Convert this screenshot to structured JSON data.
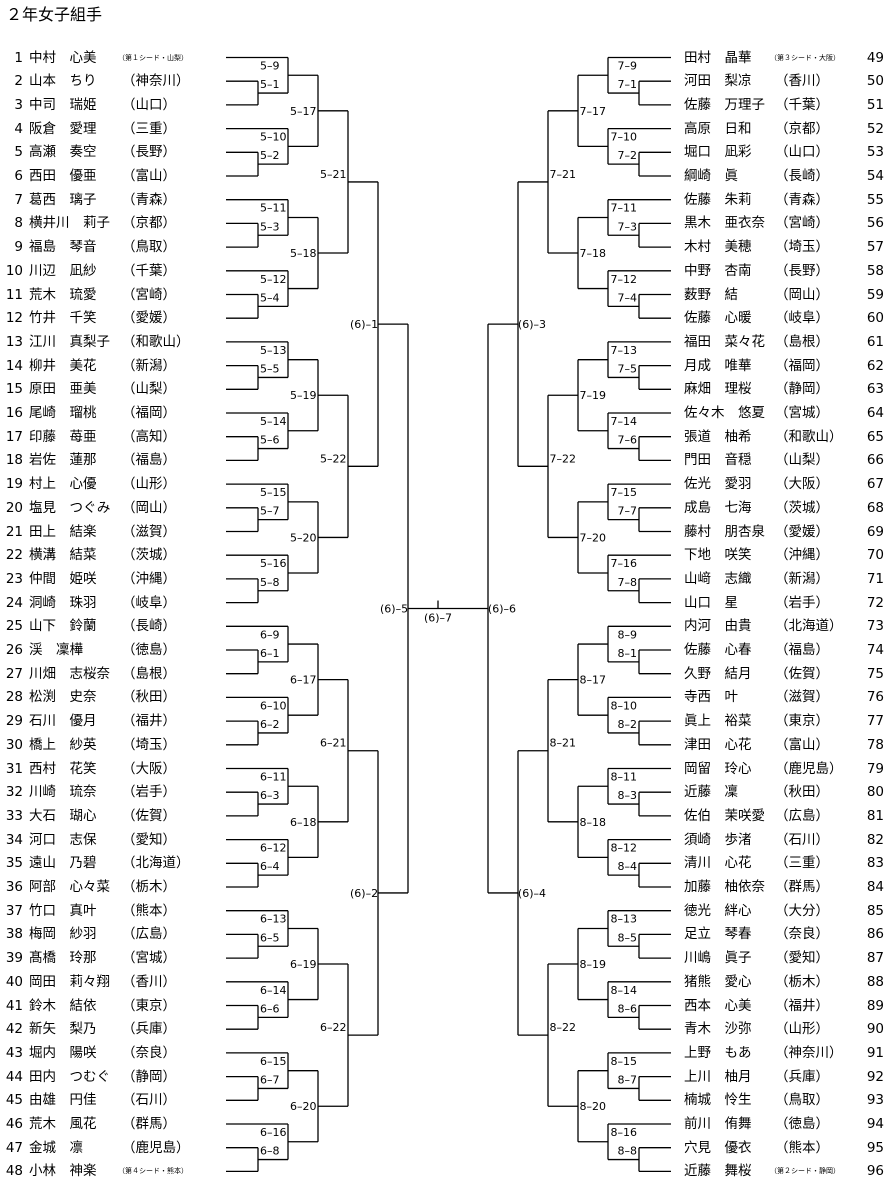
{
  "title": "２年女子組手",
  "left_entries": [
    {
      "num": "1",
      "name": "中村　心美",
      "pref": "",
      "note": "（第１シード・山梨）"
    },
    {
      "num": "2",
      "name": "山本　ちり",
      "pref": "（神奈川）"
    },
    {
      "num": "3",
      "name": "中司　瑞姫",
      "pref": "（山口）"
    },
    {
      "num": "4",
      "name": "阪倉　愛理",
      "pref": "（三重）"
    },
    {
      "num": "5",
      "name": "高瀬　奏空",
      "pref": "（長野）"
    },
    {
      "num": "6",
      "name": "西田　優亜",
      "pref": "（富山）"
    },
    {
      "num": "7",
      "name": "葛西　璃子",
      "pref": "（青森）"
    },
    {
      "num": "8",
      "name": "横井川　莉子",
      "pref": "（京都）"
    },
    {
      "num": "9",
      "name": "福島　琴音",
      "pref": "（鳥取）"
    },
    {
      "num": "10",
      "name": "川辺　凪紗",
      "pref": "（千葉）"
    },
    {
      "num": "11",
      "name": "荒木　琉愛",
      "pref": "（宮崎）"
    },
    {
      "num": "12",
      "name": "竹井　千笑",
      "pref": "（愛媛）"
    },
    {
      "num": "13",
      "name": "江川　真梨子",
      "pref": "（和歌山）"
    },
    {
      "num": "14",
      "name": "柳井　美花",
      "pref": "（新潟）"
    },
    {
      "num": "15",
      "name": "原田　亜美",
      "pref": "（山梨）"
    },
    {
      "num": "16",
      "name": "尾崎　瑠桃",
      "pref": "（福岡）"
    },
    {
      "num": "17",
      "name": "印藤　苺亜",
      "pref": "（高知）"
    },
    {
      "num": "18",
      "name": "岩佐　蓮那",
      "pref": "（福島）"
    },
    {
      "num": "19",
      "name": "村上　心優",
      "pref": "（山形）"
    },
    {
      "num": "20",
      "name": "塩見　つぐみ",
      "pref": "（岡山）"
    },
    {
      "num": "21",
      "name": "田上　結楽",
      "pref": "（滋賀）"
    },
    {
      "num": "22",
      "name": "横溝　結菜",
      "pref": "（茨城）"
    },
    {
      "num": "23",
      "name": "仲間　姫咲",
      "pref": "（沖縄）"
    },
    {
      "num": "24",
      "name": "洞崎　珠羽",
      "pref": "（岐阜）"
    },
    {
      "num": "25",
      "name": "山下　鈴蘭",
      "pref": "（長崎）"
    },
    {
      "num": "26",
      "name": "渓　凜樺",
      "pref": "（徳島）"
    },
    {
      "num": "27",
      "name": "川畑　志桜奈",
      "pref": "（島根）"
    },
    {
      "num": "28",
      "name": "松渕　史奈",
      "pref": "（秋田）"
    },
    {
      "num": "29",
      "name": "石川　優月",
      "pref": "（福井）"
    },
    {
      "num": "30",
      "name": "橋上　紗英",
      "pref": "（埼玉）"
    },
    {
      "num": "31",
      "name": "西村　花笑",
      "pref": "（大阪）"
    },
    {
      "num": "32",
      "name": "川崎　琉奈",
      "pref": "（岩手）"
    },
    {
      "num": "33",
      "name": "大石　瑚心",
      "pref": "（佐賀）"
    },
    {
      "num": "34",
      "name": "河口　志保",
      "pref": "（愛知）"
    },
    {
      "num": "35",
      "name": "遠山　乃碧",
      "pref": "（北海道）"
    },
    {
      "num": "36",
      "name": "阿部　心々菜",
      "pref": "（栃木）"
    },
    {
      "num": "37",
      "name": "竹口　真叶",
      "pref": "（熊本）"
    },
    {
      "num": "38",
      "name": "梅岡　紗羽",
      "pref": "（広島）"
    },
    {
      "num": "39",
      "name": "髙橋　玲那",
      "pref": "（宮城）"
    },
    {
      "num": "40",
      "name": "岡田　莉々翔",
      "pref": "（香川）"
    },
    {
      "num": "41",
      "name": "鈴木　結依",
      "pref": "（東京）"
    },
    {
      "num": "42",
      "name": "新矢　梨乃",
      "pref": "（兵庫）"
    },
    {
      "num": "43",
      "name": "堀内　陽咲",
      "pref": "（奈良）"
    },
    {
      "num": "44",
      "name": "田内　つむぐ",
      "pref": "（静岡）"
    },
    {
      "num": "45",
      "name": "由雄　円佳",
      "pref": "（石川）"
    },
    {
      "num": "46",
      "name": "荒木　風花",
      "pref": "（群馬）"
    },
    {
      "num": "47",
      "name": "金城　凛",
      "pref": "（鹿児島）"
    },
    {
      "num": "48",
      "name": "小林　神楽",
      "pref": "",
      "note": "（第４シード・熊本）"
    }
  ],
  "right_entries": [
    {
      "num": "49",
      "name": "田村　晶華",
      "pref": "",
      "note": "（第３シード・大阪）"
    },
    {
      "num": "50",
      "name": "河田　梨凉",
      "pref": "（香川）"
    },
    {
      "num": "51",
      "name": "佐藤　万理子",
      "pref": "（千葉）"
    },
    {
      "num": "52",
      "name": "高原　日和",
      "pref": "（京都）"
    },
    {
      "num": "53",
      "name": "堀口　凪彩",
      "pref": "（山口）"
    },
    {
      "num": "54",
      "name": "綱崎　眞",
      "pref": "（長崎）"
    },
    {
      "num": "55",
      "name": "佐藤　朱莉",
      "pref": "（青森）"
    },
    {
      "num": "56",
      "name": "黒木　亜衣奈",
      "pref": "（宮崎）"
    },
    {
      "num": "57",
      "name": "木村　美穂",
      "pref": "（埼玉）"
    },
    {
      "num": "58",
      "name": "中野　杏南",
      "pref": "（長野）"
    },
    {
      "num": "59",
      "name": "薮野　結",
      "pref": "（岡山）"
    },
    {
      "num": "60",
      "name": "佐藤　心暖",
      "pref": "（岐阜）"
    },
    {
      "num": "61",
      "name": "福田　菜々花",
      "pref": "（島根）"
    },
    {
      "num": "62",
      "name": "月成　唯華",
      "pref": "（福岡）"
    },
    {
      "num": "63",
      "name": "麻畑　理桜",
      "pref": "（静岡）"
    },
    {
      "num": "64",
      "name": "佐々木　悠夏",
      "pref": "（宮城）"
    },
    {
      "num": "65",
      "name": "張道　柚希",
      "pref": "（和歌山）"
    },
    {
      "num": "66",
      "name": "門田　音穏",
      "pref": "（山梨）"
    },
    {
      "num": "67",
      "name": "佐光　愛羽",
      "pref": "（大阪）"
    },
    {
      "num": "68",
      "name": "成島　七海",
      "pref": "（茨城）"
    },
    {
      "num": "69",
      "name": "藤村　朋杏泉",
      "pref": "（愛媛）"
    },
    {
      "num": "70",
      "name": "下地　咲笑",
      "pref": "（沖縄）"
    },
    {
      "num": "71",
      "name": "山﨑　志織",
      "pref": "（新潟）"
    },
    {
      "num": "72",
      "name": "山口　星",
      "pref": "（岩手）"
    },
    {
      "num": "73",
      "name": "内河　由貴",
      "pref": "（北海道）"
    },
    {
      "num": "74",
      "name": "佐藤　心春",
      "pref": "（福島）"
    },
    {
      "num": "75",
      "name": "久野　結月",
      "pref": "（佐賀）"
    },
    {
      "num": "76",
      "name": "寺西　叶",
      "pref": "（滋賀）"
    },
    {
      "num": "77",
      "name": "眞上　裕菜",
      "pref": "（東京）"
    },
    {
      "num": "78",
      "name": "津田　心花",
      "pref": "（富山）"
    },
    {
      "num": "79",
      "name": "岡留　玲心",
      "pref": "（鹿児島）"
    },
    {
      "num": "80",
      "name": "近藤　凜",
      "pref": "（秋田）"
    },
    {
      "num": "81",
      "name": "佐伯　茉咲愛",
      "pref": "（広島）"
    },
    {
      "num": "82",
      "name": "須崎　歩渚",
      "pref": "（石川）"
    },
    {
      "num": "83",
      "name": "清川　心花",
      "pref": "（三重）"
    },
    {
      "num": "84",
      "name": "加藤　柚依奈",
      "pref": "（群馬）"
    },
    {
      "num": "85",
      "name": "徳光　絆心",
      "pref": "（大分）"
    },
    {
      "num": "86",
      "name": "足立　琴春",
      "pref": "（奈良）"
    },
    {
      "num": "87",
      "name": "川嶋　眞子",
      "pref": "（愛知）"
    },
    {
      "num": "88",
      "name": "猪熊　愛心",
      "pref": "（栃木）"
    },
    {
      "num": "89",
      "name": "西本　心美",
      "pref": "（福井）"
    },
    {
      "num": "90",
      "name": "青木　沙弥",
      "pref": "（山形）"
    },
    {
      "num": "91",
      "name": "上野　もあ",
      "pref": "（神奈川）"
    },
    {
      "num": "92",
      "name": "上川　柚月",
      "pref": "（兵庫）"
    },
    {
      "num": "93",
      "name": "楠城　怜生",
      "pref": "（鳥取）"
    },
    {
      "num": "94",
      "name": "前川　侑舞",
      "pref": "（徳島）"
    },
    {
      "num": "95",
      "name": "穴見　優衣",
      "pref": "（熊本）"
    },
    {
      "num": "96",
      "name": "近藤　舞桜",
      "pref": "",
      "note": "（第２シード・静岡）"
    }
  ],
  "bracket": {
    "left_groups": [
      {
        "r1": [
          "5-1",
          "5-2",
          "5-3",
          "5-4"
        ],
        "r2": [
          "5-9",
          "5-10",
          "5-11",
          "5-12"
        ],
        "r3": [
          "5-17",
          "5-18"
        ],
        "r4": "5-21"
      },
      {
        "r1": [
          "5-5",
          "5-6",
          "5-7",
          "5-8"
        ],
        "r2": [
          "5-13",
          "5-14",
          "5-15",
          "5-16"
        ],
        "r3": [
          "5-19",
          "5-20"
        ],
        "r4": "5-22"
      },
      {
        "r1": [
          "6-1",
          "6-2",
          "6-3",
          "6-4"
        ],
        "r2": [
          "6-9",
          "6-10",
          "6-11",
          "6-12"
        ],
        "r3": [
          "6-17",
          "6-18"
        ],
        "r4": "6-21"
      },
      {
        "r1": [
          "6-5",
          "6-6",
          "6-7",
          "6-8"
        ],
        "r2": [
          "6-13",
          "6-14",
          "6-15",
          "6-16"
        ],
        "r3": [
          "6-19",
          "6-20"
        ],
        "r4": "6-22"
      }
    ],
    "right_groups": [
      {
        "r1": [
          "7-1",
          "7-2",
          "7-3",
          "7-4"
        ],
        "r2": [
          "7-9",
          "7-10",
          "7-11",
          "7-12"
        ],
        "r3": [
          "7-17",
          "7-18"
        ],
        "r4": "7-21"
      },
      {
        "r1": [
          "7-5",
          "7-6",
          "7-7",
          "7-8"
        ],
        "r2": [
          "7-13",
          "7-14",
          "7-15",
          "7-16"
        ],
        "r3": [
          "7-19",
          "7-20"
        ],
        "r4": "7-22"
      },
      {
        "r1": [
          "8-1",
          "8-2",
          "8-3",
          "8-4"
        ],
        "r2": [
          "8-9",
          "8-10",
          "8-11",
          "8-12"
        ],
        "r3": [
          "8-17",
          "8-18"
        ],
        "r4": "8-21"
      },
      {
        "r1": [
          "8-5",
          "8-6",
          "8-7",
          "8-8"
        ],
        "r2": [
          "8-13",
          "8-14",
          "8-15",
          "8-16"
        ],
        "r3": [
          "8-19",
          "8-20"
        ],
        "r4": "8-22"
      }
    ],
    "r5_left": [
      "(6)-1",
      "(6)-2"
    ],
    "r5_right": [
      "(6)-3",
      "(6)-4"
    ],
    "semi_left": "(6)-5",
    "semi_right": "(6)-6",
    "final": "(6)-7"
  }
}
